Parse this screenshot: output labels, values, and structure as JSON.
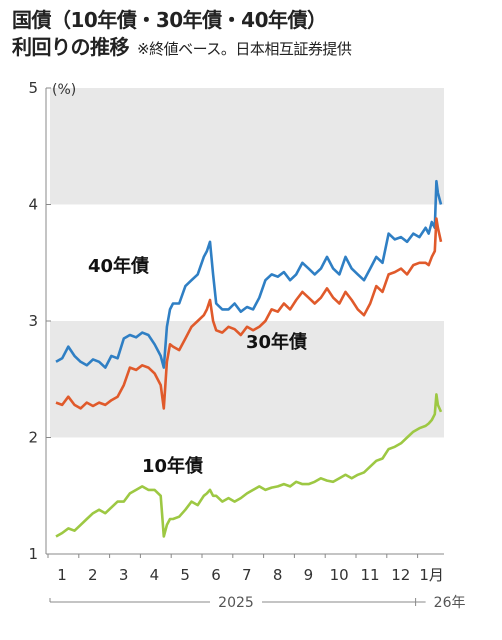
{
  "title": {
    "line1": "国債（10年債・30年債・40年債）",
    "line2": "利回りの推移",
    "source": "※終値ベース。日本相互証券提供"
  },
  "colors": {
    "bond10": "#9dc843",
    "bond30": "#e05a2b",
    "bond40": "#2f7fc4",
    "band": "#e8e8e8",
    "axis": "#888888"
  },
  "chart_data": {
    "type": "line",
    "ylim": [
      1,
      5
    ],
    "yticks": [
      "1",
      "2",
      "3",
      "4",
      "5"
    ],
    "yunit": "(%)",
    "xtick_labels": [
      "1",
      "2",
      "3",
      "4",
      "5",
      "6",
      "7",
      "8",
      "9",
      "10",
      "11",
      "12",
      "1月"
    ],
    "year_labels": [
      "2025",
      "26年"
    ],
    "grid_bands": [
      [
        2,
        3
      ],
      [
        4,
        5
      ]
    ],
    "xlim": [
      0,
      12.7
    ],
    "series": [
      {
        "name": "40年債",
        "x": [
          0.0,
          0.2,
          0.4,
          0.6,
          0.8,
          1.0,
          1.2,
          1.4,
          1.6,
          1.8,
          2.0,
          2.2,
          2.4,
          2.6,
          2.8,
          3.0,
          3.2,
          3.4,
          3.5,
          3.6,
          3.7,
          3.8,
          4.0,
          4.2,
          4.4,
          4.6,
          4.8,
          4.9,
          5.0,
          5.1,
          5.2,
          5.4,
          5.6,
          5.8,
          6.0,
          6.2,
          6.4,
          6.6,
          6.8,
          7.0,
          7.2,
          7.4,
          7.6,
          7.8,
          8.0,
          8.2,
          8.4,
          8.6,
          8.8,
          9.0,
          9.2,
          9.4,
          9.6,
          9.8,
          10.0,
          10.2,
          10.4,
          10.6,
          10.8,
          11.0,
          11.2,
          11.4,
          11.6,
          11.8,
          12.0,
          12.1,
          12.2,
          12.3,
          12.35,
          12.4,
          12.5
        ],
        "values": [
          2.65,
          2.68,
          2.78,
          2.7,
          2.65,
          2.62,
          2.67,
          2.65,
          2.6,
          2.7,
          2.68,
          2.85,
          2.88,
          2.86,
          2.9,
          2.88,
          2.8,
          2.7,
          2.6,
          2.95,
          3.1,
          3.15,
          3.15,
          3.3,
          3.35,
          3.4,
          3.55,
          3.6,
          3.68,
          3.4,
          3.15,
          3.1,
          3.1,
          3.15,
          3.08,
          3.12,
          3.1,
          3.2,
          3.35,
          3.4,
          3.38,
          3.42,
          3.35,
          3.4,
          3.5,
          3.45,
          3.4,
          3.45,
          3.55,
          3.45,
          3.4,
          3.55,
          3.45,
          3.4,
          3.35,
          3.45,
          3.55,
          3.5,
          3.75,
          3.7,
          3.72,
          3.68,
          3.75,
          3.72,
          3.8,
          3.75,
          3.85,
          3.8,
          4.2,
          4.1,
          4.0
        ]
      },
      {
        "name": "30年債",
        "x": [
          0.0,
          0.2,
          0.4,
          0.6,
          0.8,
          1.0,
          1.2,
          1.4,
          1.6,
          1.8,
          2.0,
          2.2,
          2.4,
          2.6,
          2.8,
          3.0,
          3.2,
          3.4,
          3.5,
          3.6,
          3.7,
          3.8,
          4.0,
          4.2,
          4.4,
          4.6,
          4.8,
          4.9,
          5.0,
          5.1,
          5.2,
          5.4,
          5.6,
          5.8,
          6.0,
          6.2,
          6.4,
          6.6,
          6.8,
          7.0,
          7.2,
          7.4,
          7.6,
          7.8,
          8.0,
          8.2,
          8.4,
          8.6,
          8.8,
          9.0,
          9.2,
          9.4,
          9.6,
          9.8,
          10.0,
          10.2,
          10.4,
          10.6,
          10.8,
          11.0,
          11.2,
          11.4,
          11.6,
          11.8,
          12.0,
          12.1,
          12.2,
          12.3,
          12.35,
          12.4,
          12.5
        ],
        "values": [
          2.3,
          2.28,
          2.35,
          2.28,
          2.25,
          2.3,
          2.27,
          2.3,
          2.28,
          2.32,
          2.35,
          2.45,
          2.6,
          2.58,
          2.62,
          2.6,
          2.55,
          2.45,
          2.25,
          2.65,
          2.8,
          2.78,
          2.75,
          2.85,
          2.95,
          3.0,
          3.05,
          3.1,
          3.18,
          3.0,
          2.92,
          2.9,
          2.95,
          2.93,
          2.88,
          2.95,
          2.92,
          2.95,
          3.0,
          3.1,
          3.08,
          3.15,
          3.1,
          3.18,
          3.25,
          3.2,
          3.15,
          3.2,
          3.28,
          3.2,
          3.15,
          3.25,
          3.18,
          3.1,
          3.05,
          3.15,
          3.3,
          3.25,
          3.4,
          3.42,
          3.45,
          3.4,
          3.48,
          3.5,
          3.5,
          3.48,
          3.55,
          3.6,
          3.88,
          3.8,
          3.68
        ]
      },
      {
        "name": "10年債",
        "x": [
          0.0,
          0.2,
          0.4,
          0.6,
          0.8,
          1.0,
          1.2,
          1.4,
          1.6,
          1.8,
          2.0,
          2.2,
          2.4,
          2.6,
          2.8,
          3.0,
          3.2,
          3.4,
          3.5,
          3.6,
          3.7,
          3.8,
          4.0,
          4.2,
          4.4,
          4.6,
          4.8,
          4.9,
          5.0,
          5.1,
          5.2,
          5.4,
          5.6,
          5.8,
          6.0,
          6.2,
          6.4,
          6.6,
          6.8,
          7.0,
          7.2,
          7.4,
          7.6,
          7.8,
          8.0,
          8.2,
          8.4,
          8.6,
          8.8,
          9.0,
          9.2,
          9.4,
          9.6,
          9.8,
          10.0,
          10.2,
          10.4,
          10.6,
          10.8,
          11.0,
          11.2,
          11.4,
          11.6,
          11.8,
          12.0,
          12.1,
          12.2,
          12.3,
          12.35,
          12.4,
          12.5
        ],
        "values": [
          1.15,
          1.18,
          1.22,
          1.2,
          1.25,
          1.3,
          1.35,
          1.38,
          1.35,
          1.4,
          1.45,
          1.45,
          1.52,
          1.55,
          1.58,
          1.55,
          1.55,
          1.5,
          1.15,
          1.25,
          1.3,
          1.3,
          1.32,
          1.38,
          1.45,
          1.42,
          1.5,
          1.52,
          1.55,
          1.5,
          1.5,
          1.45,
          1.48,
          1.45,
          1.48,
          1.52,
          1.55,
          1.58,
          1.55,
          1.57,
          1.58,
          1.6,
          1.58,
          1.62,
          1.6,
          1.6,
          1.62,
          1.65,
          1.63,
          1.62,
          1.65,
          1.68,
          1.65,
          1.68,
          1.7,
          1.75,
          1.8,
          1.82,
          1.9,
          1.92,
          1.95,
          2.0,
          2.05,
          2.08,
          2.1,
          2.12,
          2.15,
          2.2,
          2.37,
          2.28,
          2.22
        ]
      }
    ]
  }
}
